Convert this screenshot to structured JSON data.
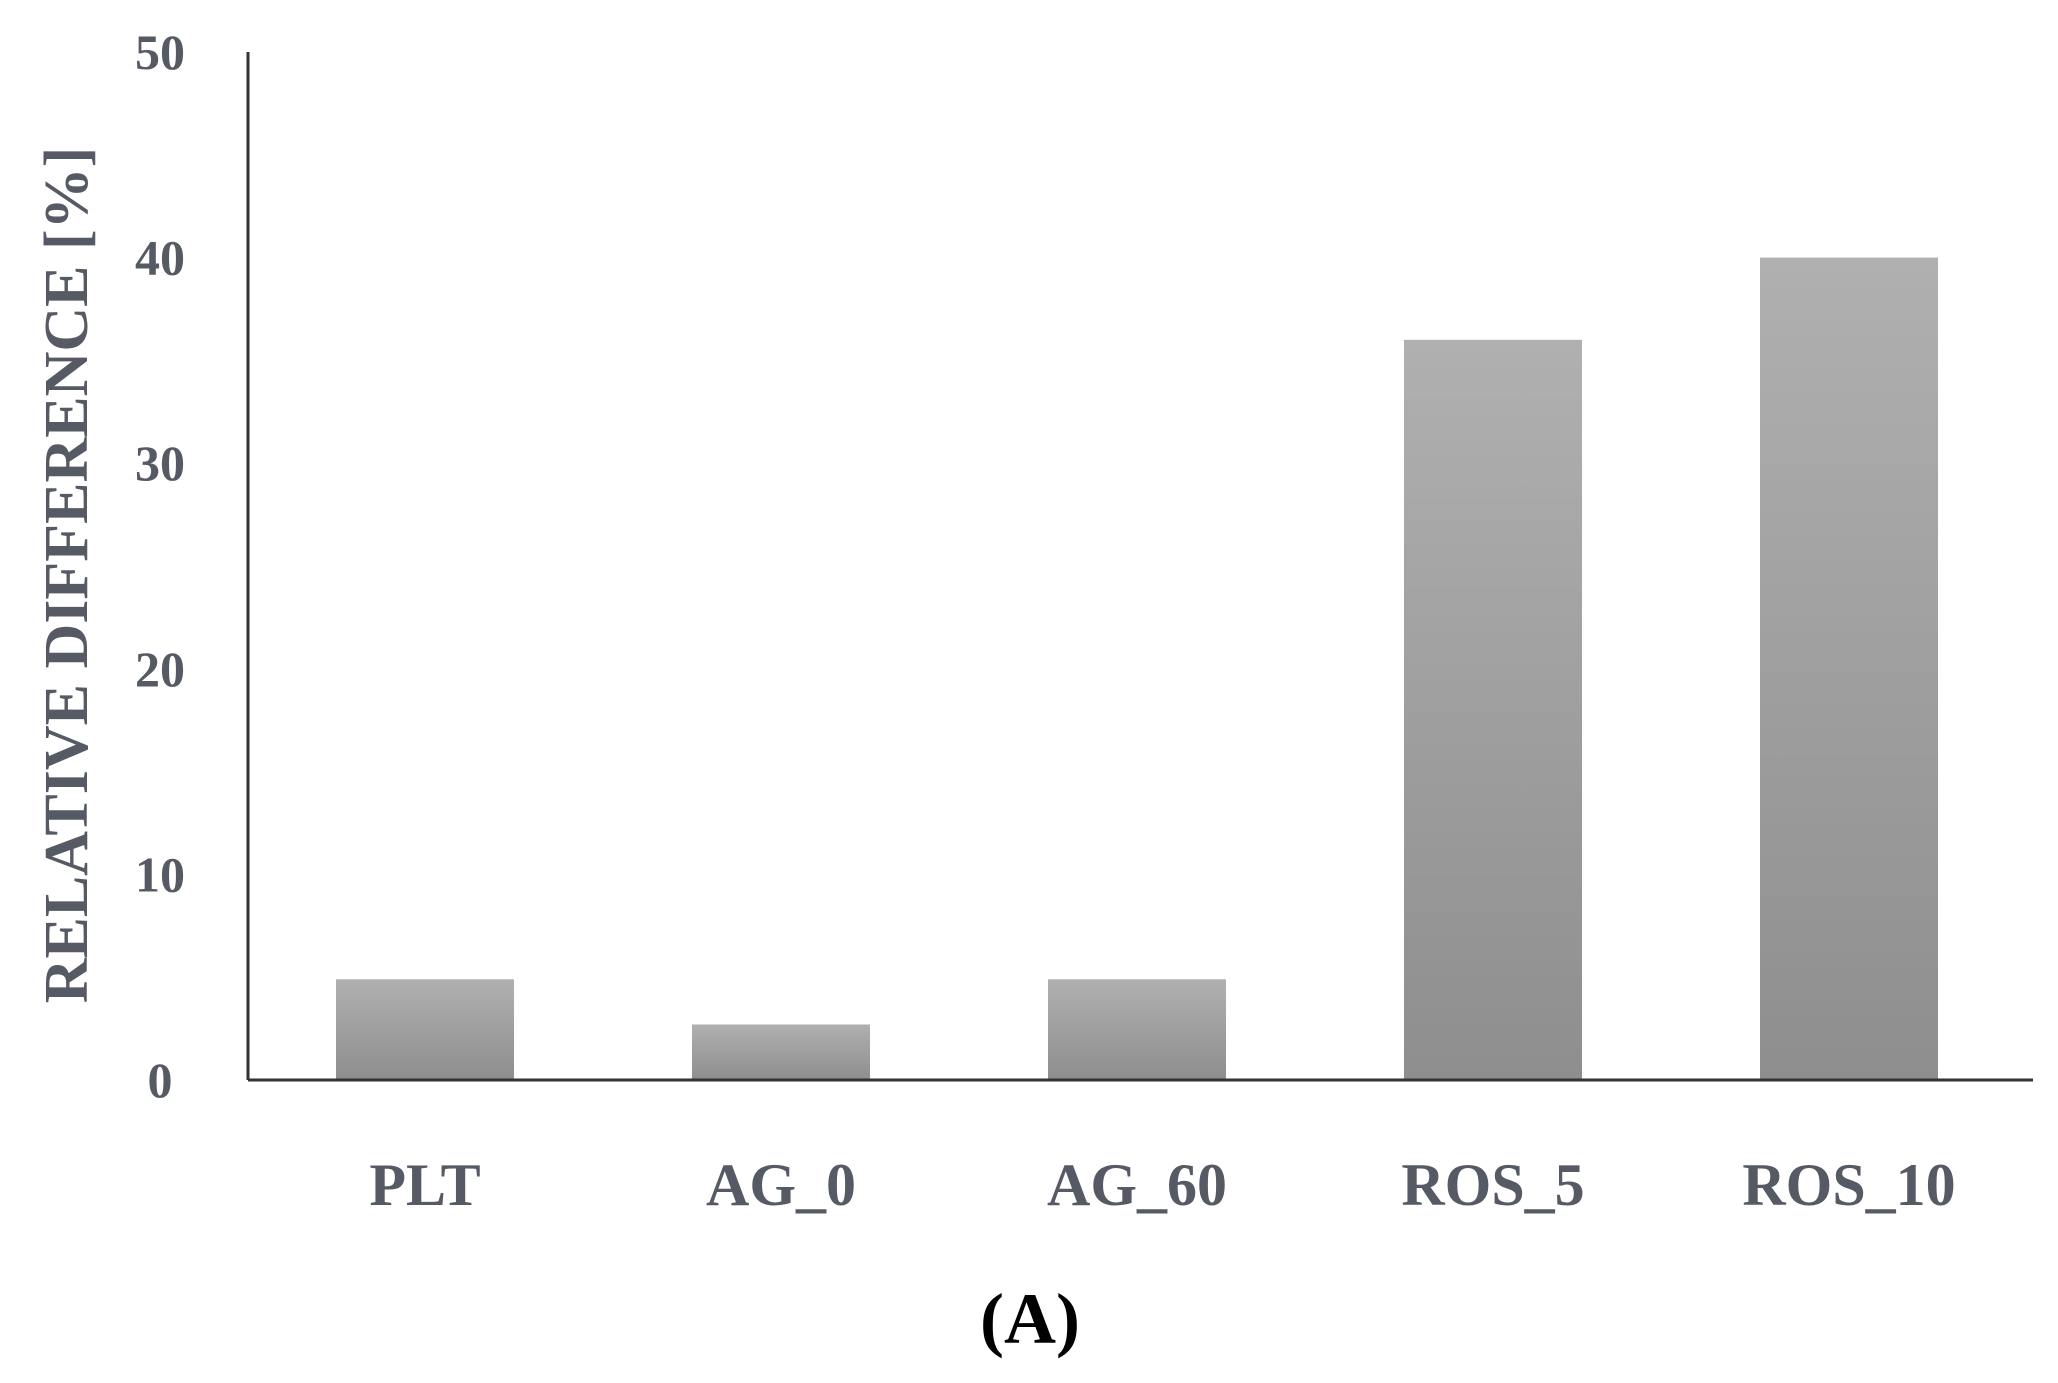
{
  "chart_data": {
    "type": "bar",
    "categories": [
      "PLT",
      "AG_0",
      "AG_60",
      "ROS_5",
      "ROS_10"
    ],
    "values": [
      4.9,
      2.7,
      4.9,
      36,
      40
    ],
    "title": "",
    "xlabel": "",
    "ylabel": "RELATIVE DIFFERENCE [%]",
    "ylim": [
      0,
      50
    ],
    "yticks": [
      0,
      10,
      20,
      30,
      40,
      50
    ],
    "grid": false,
    "legend": "none",
    "bar_color_top": "#b0b0b0",
    "bar_color_bottom": "#8e8e8e",
    "text_color": "#555a64",
    "axis_color": "#333333"
  },
  "panel_label": "(A)"
}
